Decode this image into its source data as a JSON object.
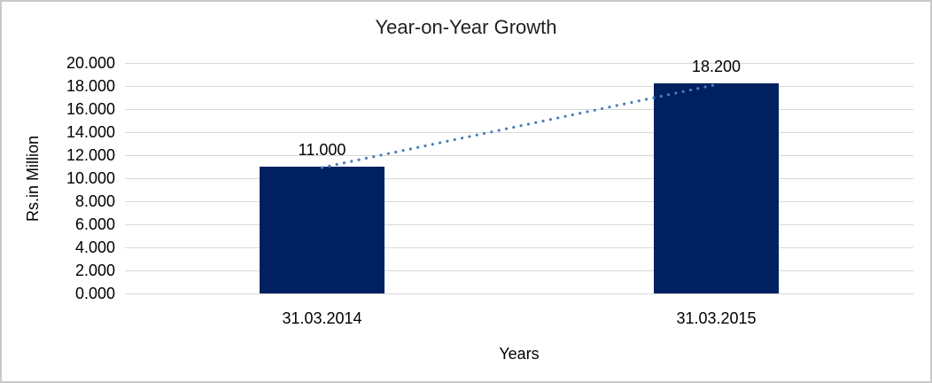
{
  "chart_data": {
    "type": "bar",
    "title": "Year-on-Year Growth",
    "ylabel": "Rs.in Million",
    "xlabel": "Years",
    "categories": [
      "31.03.2014",
      "31.03.2015"
    ],
    "values": [
      11.0,
      18.2
    ],
    "data_labels": [
      "11.000",
      "18.200"
    ],
    "ylim": [
      0,
      20
    ],
    "ytick_step": 2,
    "ytick_labels": [
      "0.000",
      "2.000",
      "4.000",
      "6.000",
      "8.000",
      "10.000",
      "12.000",
      "14.000",
      "16.000",
      "18.000",
      "20.000"
    ],
    "grid": true,
    "legend": "none",
    "bar_color": "#002060",
    "gridline_color": "#d9d9d9",
    "trendline": {
      "style": "dotted",
      "color": "#4a7ebb",
      "connects": "bar tops"
    }
  }
}
